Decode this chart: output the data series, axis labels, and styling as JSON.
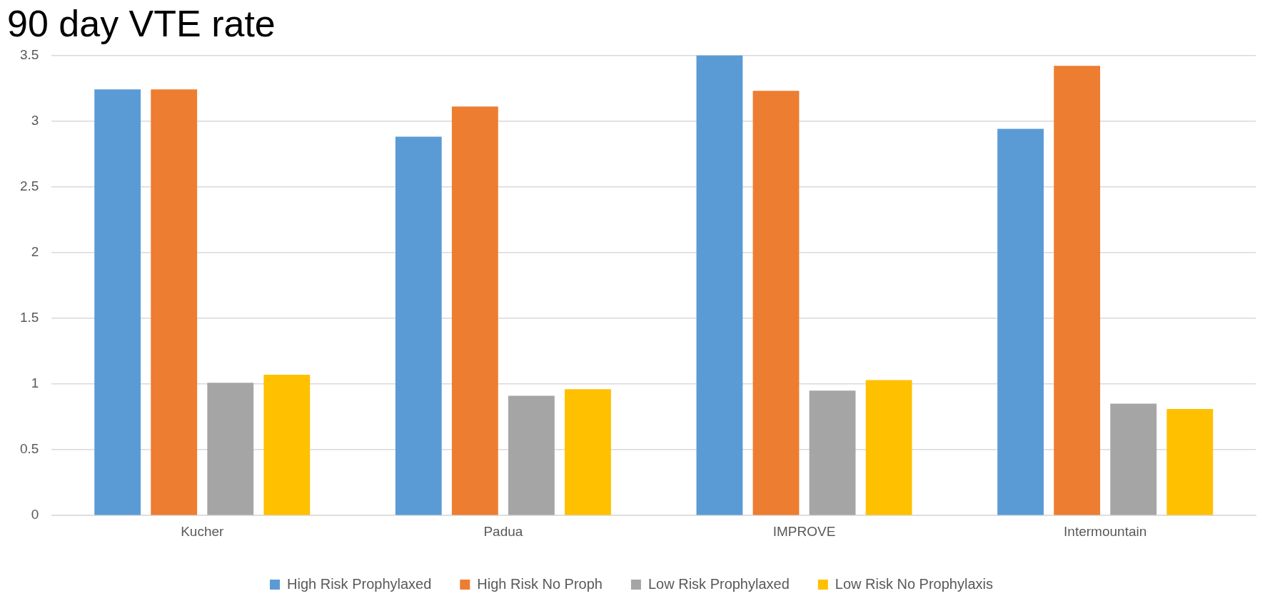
{
  "chart_data": {
    "type": "bar",
    "title": "90 day VTE rate",
    "categories": [
      "Kucher",
      "Padua",
      "IMPROVE",
      "Intermountain"
    ],
    "series": [
      {
        "name": "High Risk Prophylaxed",
        "color": "#5b9bd5",
        "values": [
          3.24,
          2.88,
          3.5,
          2.94
        ]
      },
      {
        "name": "High Risk No Proph",
        "color": "#ed7d31",
        "values": [
          3.24,
          3.11,
          3.23,
          3.42
        ]
      },
      {
        "name": "Low Risk Prophylaxed",
        "color": "#a5a5a5",
        "values": [
          1.01,
          0.91,
          0.95,
          0.85
        ]
      },
      {
        "name": "Low Risk No Prophylaxis",
        "color": "#ffc000",
        "values": [
          1.07,
          0.96,
          1.03,
          0.81
        ]
      }
    ],
    "ylim": [
      0,
      3.5
    ],
    "yticks": [
      0,
      0.5,
      1,
      1.5,
      2,
      2.5,
      3,
      3.5
    ],
    "grid": "y",
    "legend": "bottom"
  }
}
